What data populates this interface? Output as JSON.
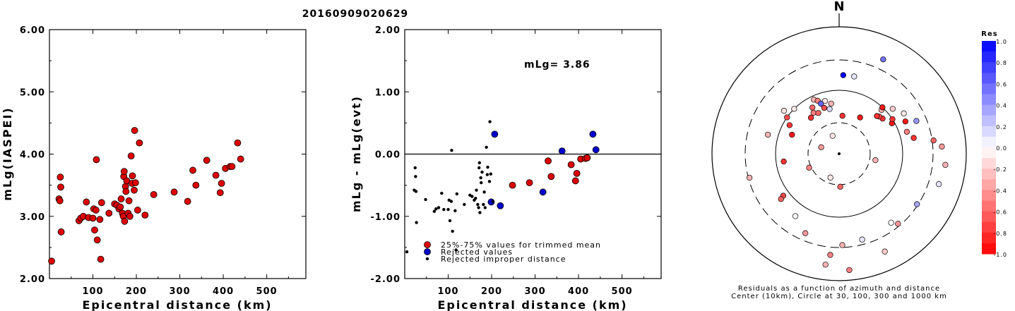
{
  "title": "20160909020629",
  "chart_data": [
    {
      "id": "left",
      "type": "scatter",
      "xlabel": "Epicentral distance (km)",
      "ylabel": "mLg(IASPEI)",
      "xlim": [
        0,
        590
      ],
      "ylim": [
        2.0,
        6.0
      ],
      "xticks": [
        "100",
        "200",
        "300",
        "400",
        "500"
      ],
      "yticks": [
        "2.00",
        "3.00",
        "4.00",
        "5.00",
        "6.00"
      ],
      "points_color": "#dd0000",
      "points": [
        [
          5,
          2.28
        ],
        [
          22,
          3.28
        ],
        [
          24,
          3.25
        ],
        [
          25,
          3.63
        ],
        [
          26,
          3.47
        ],
        [
          27,
          2.75
        ],
        [
          68,
          2.93
        ],
        [
          72,
          2.97
        ],
        [
          78,
          3.0
        ],
        [
          85,
          3.23
        ],
        [
          90,
          2.98
        ],
        [
          100,
          2.97
        ],
        [
          102,
          3.12
        ],
        [
          104,
          2.78
        ],
        [
          107,
          3.1
        ],
        [
          108,
          3.91
        ],
        [
          110,
          2.62
        ],
        [
          116,
          2.95
        ],
        [
          118,
          2.31
        ],
        [
          120,
          3.22
        ],
        [
          137,
          3.05
        ],
        [
          150,
          3.2
        ],
        [
          155,
          3.18
        ],
        [
          160,
          3.12
        ],
        [
          163,
          3.15
        ],
        [
          165,
          3.28
        ],
        [
          168,
          3.05
        ],
        [
          170,
          3.0
        ],
        [
          171,
          3.64
        ],
        [
          172,
          3.72
        ],
        [
          173,
          2.92
        ],
        [
          175,
          3.48
        ],
        [
          176,
          3.4
        ],
        [
          178,
          3.57
        ],
        [
          181,
          3.05
        ],
        [
          183,
          3.25
        ],
        [
          185,
          3.0
        ],
        [
          188,
          3.97
        ],
        [
          190,
          3.53
        ],
        [
          191,
          3.65
        ],
        [
          195,
          3.42
        ],
        [
          196,
          4.38
        ],
        [
          198,
          3.54
        ],
        [
          203,
          3.1
        ],
        [
          207,
          4.18
        ],
        [
          220,
          3.02
        ],
        [
          240,
          3.35
        ],
        [
          287,
          3.39
        ],
        [
          318,
          3.24
        ],
        [
          330,
          3.74
        ],
        [
          337,
          3.5
        ],
        [
          362,
          3.9
        ],
        [
          383,
          3.66
        ],
        [
          393,
          3.38
        ],
        [
          396,
          3.53
        ],
        [
          405,
          3.77
        ],
        [
          416,
          3.8
        ],
        [
          420,
          3.8
        ],
        [
          433,
          4.18
        ],
        [
          440,
          3.92
        ]
      ]
    },
    {
      "id": "middle",
      "type": "scatter",
      "xlabel": "Epicentral distance (km)",
      "ylabel": "mLg - mLg(evt)",
      "xlim": [
        0,
        590
      ],
      "ylim": [
        -2.0,
        2.0
      ],
      "xticks": [
        "100",
        "200",
        "300",
        "400",
        "500"
      ],
      "yticks": [
        "-2.00",
        "-1.00",
        "0.00",
        "1.00",
        "2.00"
      ],
      "annotation": "mLg= 3.86",
      "reference_line_y": 0.0,
      "legend": [
        {
          "label": "25%-75% values for trimmed mean",
          "color": "#dd0000",
          "kind": "circle"
        },
        {
          "label": "Rejected values",
          "color": "#0000cc",
          "kind": "circle"
        },
        {
          "label": "Rejected improper distance",
          "color": "#000000",
          "kind": "dot"
        }
      ],
      "series": [
        {
          "name": "25%-75% values for trimmed mean",
          "color": "#dd0000",
          "points": [
            [
              248,
              -0.5
            ],
            [
              287,
              -0.46
            ],
            [
              330,
              -0.11
            ],
            [
              337,
              -0.36
            ],
            [
              383,
              -0.17
            ],
            [
              393,
              -0.43
            ],
            [
              396,
              -0.31
            ],
            [
              405,
              -0.08
            ],
            [
              416,
              -0.07
            ],
            [
              420,
              -0.06
            ]
          ]
        },
        {
          "name": "Rejected values",
          "color": "#0000cc",
          "points": [
            [
              207,
              0.32
            ],
            [
              199,
              -0.77
            ],
            [
              220,
              -0.83
            ],
            [
              318,
              -0.61
            ],
            [
              362,
              0.05
            ],
            [
              433,
              0.32
            ],
            [
              440,
              0.07
            ]
          ]
        },
        {
          "name": "Rejected improper distance",
          "color": "#000000",
          "points": [
            [
              5,
              -1.57
            ],
            [
              22,
              -0.58
            ],
            [
              24,
              -0.22
            ],
            [
              25,
              -0.36
            ],
            [
              26,
              -0.6
            ],
            [
              27,
              -1.1
            ],
            [
              48,
              -0.73
            ],
            [
              52,
              -1.57
            ],
            [
              68,
              -0.92
            ],
            [
              72,
              -0.88
            ],
            [
              78,
              -0.86
            ],
            [
              85,
              -0.63
            ],
            [
              90,
              -0.89
            ],
            [
              100,
              -0.89
            ],
            [
              102,
              -0.74
            ],
            [
              104,
              -1.07
            ],
            [
              107,
              -0.76
            ],
            [
              108,
              0.06
            ],
            [
              110,
              -1.24
            ],
            [
              116,
              -0.91
            ],
            [
              118,
              -1.54
            ],
            [
              120,
              -0.64
            ],
            [
              137,
              -0.81
            ],
            [
              150,
              -0.66
            ],
            [
              155,
              -0.68
            ],
            [
              160,
              -0.74
            ],
            [
              163,
              -0.71
            ],
            [
              165,
              -0.58
            ],
            [
              168,
              -0.81
            ],
            [
              170,
              -0.86
            ],
            [
              171,
              -0.22
            ],
            [
              172,
              -0.14
            ],
            [
              173,
              -0.94
            ],
            [
              175,
              -0.38
            ],
            [
              176,
              -0.46
            ],
            [
              178,
              -0.29
            ],
            [
              181,
              -0.81
            ],
            [
              183,
              -0.61
            ],
            [
              185,
              -0.86
            ],
            [
              188,
              0.11
            ],
            [
              190,
              -0.33
            ],
            [
              191,
              -0.21
            ],
            [
              195,
              -0.44
            ],
            [
              196,
              0.52
            ],
            [
              198,
              -0.32
            ],
            [
              203,
              -0.76
            ]
          ]
        }
      ]
    },
    {
      "id": "polar",
      "type": "scatter",
      "north_label": "N",
      "caption_line1": "Residuals as a function of azimuth and distance",
      "caption_line2": "Center (10km), Circle at 30, 100, 300 and 1000 km",
      "colorbar_title": "Res",
      "colorbar_ticks": [
        "1.0",
        "0.8",
        "0.6",
        "0.4",
        "0.2",
        "0.0",
        "-0.2",
        "-0.4",
        "-0.6",
        "-0.8",
        "-1.0"
      ],
      "points": [
        {
          "az": 0,
          "r": 0.0,
          "res": 0.0
        },
        {
          "az": 3,
          "r": 0.62,
          "res": 1.0
        },
        {
          "az": 11,
          "r": 0.62,
          "res": 0.1
        },
        {
          "az": 345,
          "r": 0.43,
          "res": -0.1
        },
        {
          "az": 335,
          "r": 0.47,
          "res": -0.3
        },
        {
          "az": 338,
          "r": 0.45,
          "res": -0.5
        },
        {
          "az": 340,
          "r": 0.42,
          "res": 0.6
        },
        {
          "az": 342,
          "r": 0.38,
          "res": -0.7
        },
        {
          "az": 330,
          "r": 0.42,
          "res": -0.6
        },
        {
          "az": 328,
          "r": 0.38,
          "res": -0.5
        },
        {
          "az": 333,
          "r": 0.36,
          "res": -0.6
        },
        {
          "az": 348,
          "r": 0.36,
          "res": 0.15
        },
        {
          "az": 351,
          "r": 0.4,
          "res": -0.3
        },
        {
          "az": 5,
          "r": 0.3,
          "res": -0.8
        },
        {
          "az": 315,
          "r": 0.5,
          "res": -0.1
        },
        {
          "az": 322,
          "r": 0.36,
          "res": -0.8
        },
        {
          "az": 308,
          "r": 0.55,
          "res": -0.1
        },
        {
          "az": 305,
          "r": 0.5,
          "res": -0.7
        },
        {
          "az": 300,
          "r": 0.45,
          "res": -0.8
        },
        {
          "az": 292,
          "r": 0.4,
          "res": -0.9
        },
        {
          "az": 285,
          "r": 0.58,
          "res": -0.3
        },
        {
          "az": 262,
          "r": 0.44,
          "res": -0.8
        },
        {
          "az": 255,
          "r": 0.73,
          "res": -0.3
        },
        {
          "az": 233,
          "r": 0.55,
          "res": -0.7
        },
        {
          "az": 232,
          "r": 0.58,
          "res": -0.6
        },
        {
          "az": 215,
          "r": 0.6,
          "res": 0.0
        },
        {
          "az": 203,
          "r": 0.68,
          "res": -0.4
        },
        {
          "az": 185,
          "r": 0.8,
          "res": -0.5
        },
        {
          "az": 187,
          "r": 0.88,
          "res": -0.3
        },
        {
          "az": 178,
          "r": 0.72,
          "res": -0.3
        },
        {
          "az": 175,
          "r": 0.92,
          "res": -0.5
        },
        {
          "az": 165,
          "r": 0.7,
          "res": 0.1
        },
        {
          "az": 155,
          "r": 0.85,
          "res": -0.2
        },
        {
          "az": 143,
          "r": 0.68,
          "res": 0.0
        },
        {
          "az": 140,
          "r": 0.72,
          "res": -0.4
        },
        {
          "az": 123,
          "r": 0.73,
          "res": 0.35
        },
        {
          "az": 107,
          "r": 0.82,
          "res": 0.1
        },
        {
          "az": 96,
          "r": 0.84,
          "res": -0.3
        },
        {
          "az": 86,
          "r": 0.81,
          "res": -0.4
        },
        {
          "az": 82,
          "r": 0.75,
          "res": -0.6
        },
        {
          "az": 78,
          "r": 0.6,
          "res": -0.8
        },
        {
          "az": 72,
          "r": 0.56,
          "res": -0.5
        },
        {
          "az": 67,
          "r": 0.66,
          "res": 0.4
        },
        {
          "az": 64,
          "r": 0.58,
          "res": -0.9
        },
        {
          "az": 60,
          "r": 0.48,
          "res": -0.9
        },
        {
          "az": 57,
          "r": 0.5,
          "res": -0.8
        },
        {
          "az": 51,
          "r": 0.44,
          "res": -0.8
        },
        {
          "az": 47,
          "r": 0.43,
          "res": -0.7
        },
        {
          "az": 45,
          "r": 0.42,
          "res": -0.8
        },
        {
          "az": 44,
          "r": 0.48,
          "res": -0.3
        },
        {
          "az": 43,
          "r": 0.5,
          "res": -0.9
        },
        {
          "az": 50,
          "r": 0.55,
          "res": -0.2
        },
        {
          "az": 58,
          "r": 0.6,
          "res": -0.1
        },
        {
          "az": 30,
          "r": 0.33,
          "res": -0.9
        },
        {
          "az": 100,
          "r": 0.29,
          "res": -0.3
        },
        {
          "az": 200,
          "r": 0.2,
          "res": -0.1
        },
        {
          "az": 290,
          "r": 0.15,
          "res": -0.4
        },
        {
          "az": 340,
          "r": 0.15,
          "res": -0.1
        },
        {
          "az": 178,
          "r": 0.26,
          "res": -0.6
        },
        {
          "az": 245,
          "r": 0.26,
          "res": -0.5
        },
        {
          "az": 25,
          "r": 0.82,
          "res": 0.55
        }
      ]
    }
  ]
}
